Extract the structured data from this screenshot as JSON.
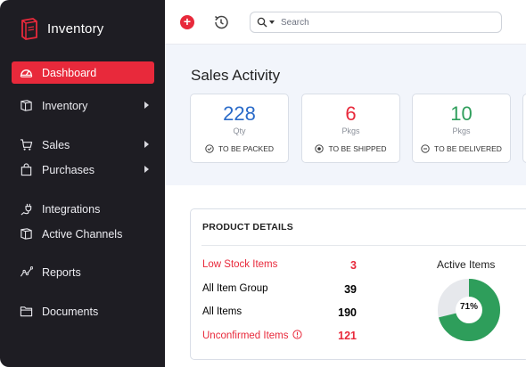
{
  "app": {
    "title": "Inventory"
  },
  "sidebar": {
    "items": [
      {
        "label": "Dashboard",
        "icon": "dashboard-icon",
        "active": true
      },
      {
        "label": "Inventory",
        "icon": "box-icon",
        "has_submenu": true
      },
      {
        "label": "Sales",
        "icon": "cart-icon",
        "has_submenu": true
      },
      {
        "label": "Purchases",
        "icon": "bag-icon",
        "has_submenu": true
      },
      {
        "label": "Integrations",
        "icon": "plug-icon"
      },
      {
        "label": "Active Channels",
        "icon": "channels-icon"
      },
      {
        "label": "Reports",
        "icon": "reports-icon"
      },
      {
        "label": "Documents",
        "icon": "folder-icon"
      }
    ]
  },
  "topbar": {
    "add_icon": "plus-icon",
    "history_icon": "history-icon",
    "search_placeholder": "Search"
  },
  "sales_activity": {
    "title": "Sales Activity",
    "cards": [
      {
        "value": "228",
        "unit": "Qty",
        "label": "TO BE PACKED",
        "color": "#2a6bc9",
        "icon": "check-circle-icon"
      },
      {
        "value": "6",
        "unit": "Pkgs",
        "label": "TO BE SHIPPED",
        "color": "#e8293b",
        "icon": "dot-circle-icon"
      },
      {
        "value": "10",
        "unit": "Pkgs",
        "label": "TO BE DELIVERED",
        "color": "#2e9e5b",
        "icon": "minus-circle-icon"
      }
    ]
  },
  "product_details": {
    "title": "PRODUCT DETAILS",
    "rows": [
      {
        "name": "Low Stock Items",
        "value": "3",
        "highlight": true
      },
      {
        "name": "All Item Group",
        "value": "39",
        "highlight": false
      },
      {
        "name": "All Items",
        "value": "190",
        "highlight": false
      },
      {
        "name": "Unconfirmed Items",
        "value": "121",
        "highlight": true,
        "icon": "info-icon"
      }
    ],
    "active_items": {
      "title": "Active Items",
      "percent_label": "71%",
      "percent": 71,
      "fill_color": "#2e9e5b",
      "track_color": "#e6e8ec"
    }
  }
}
